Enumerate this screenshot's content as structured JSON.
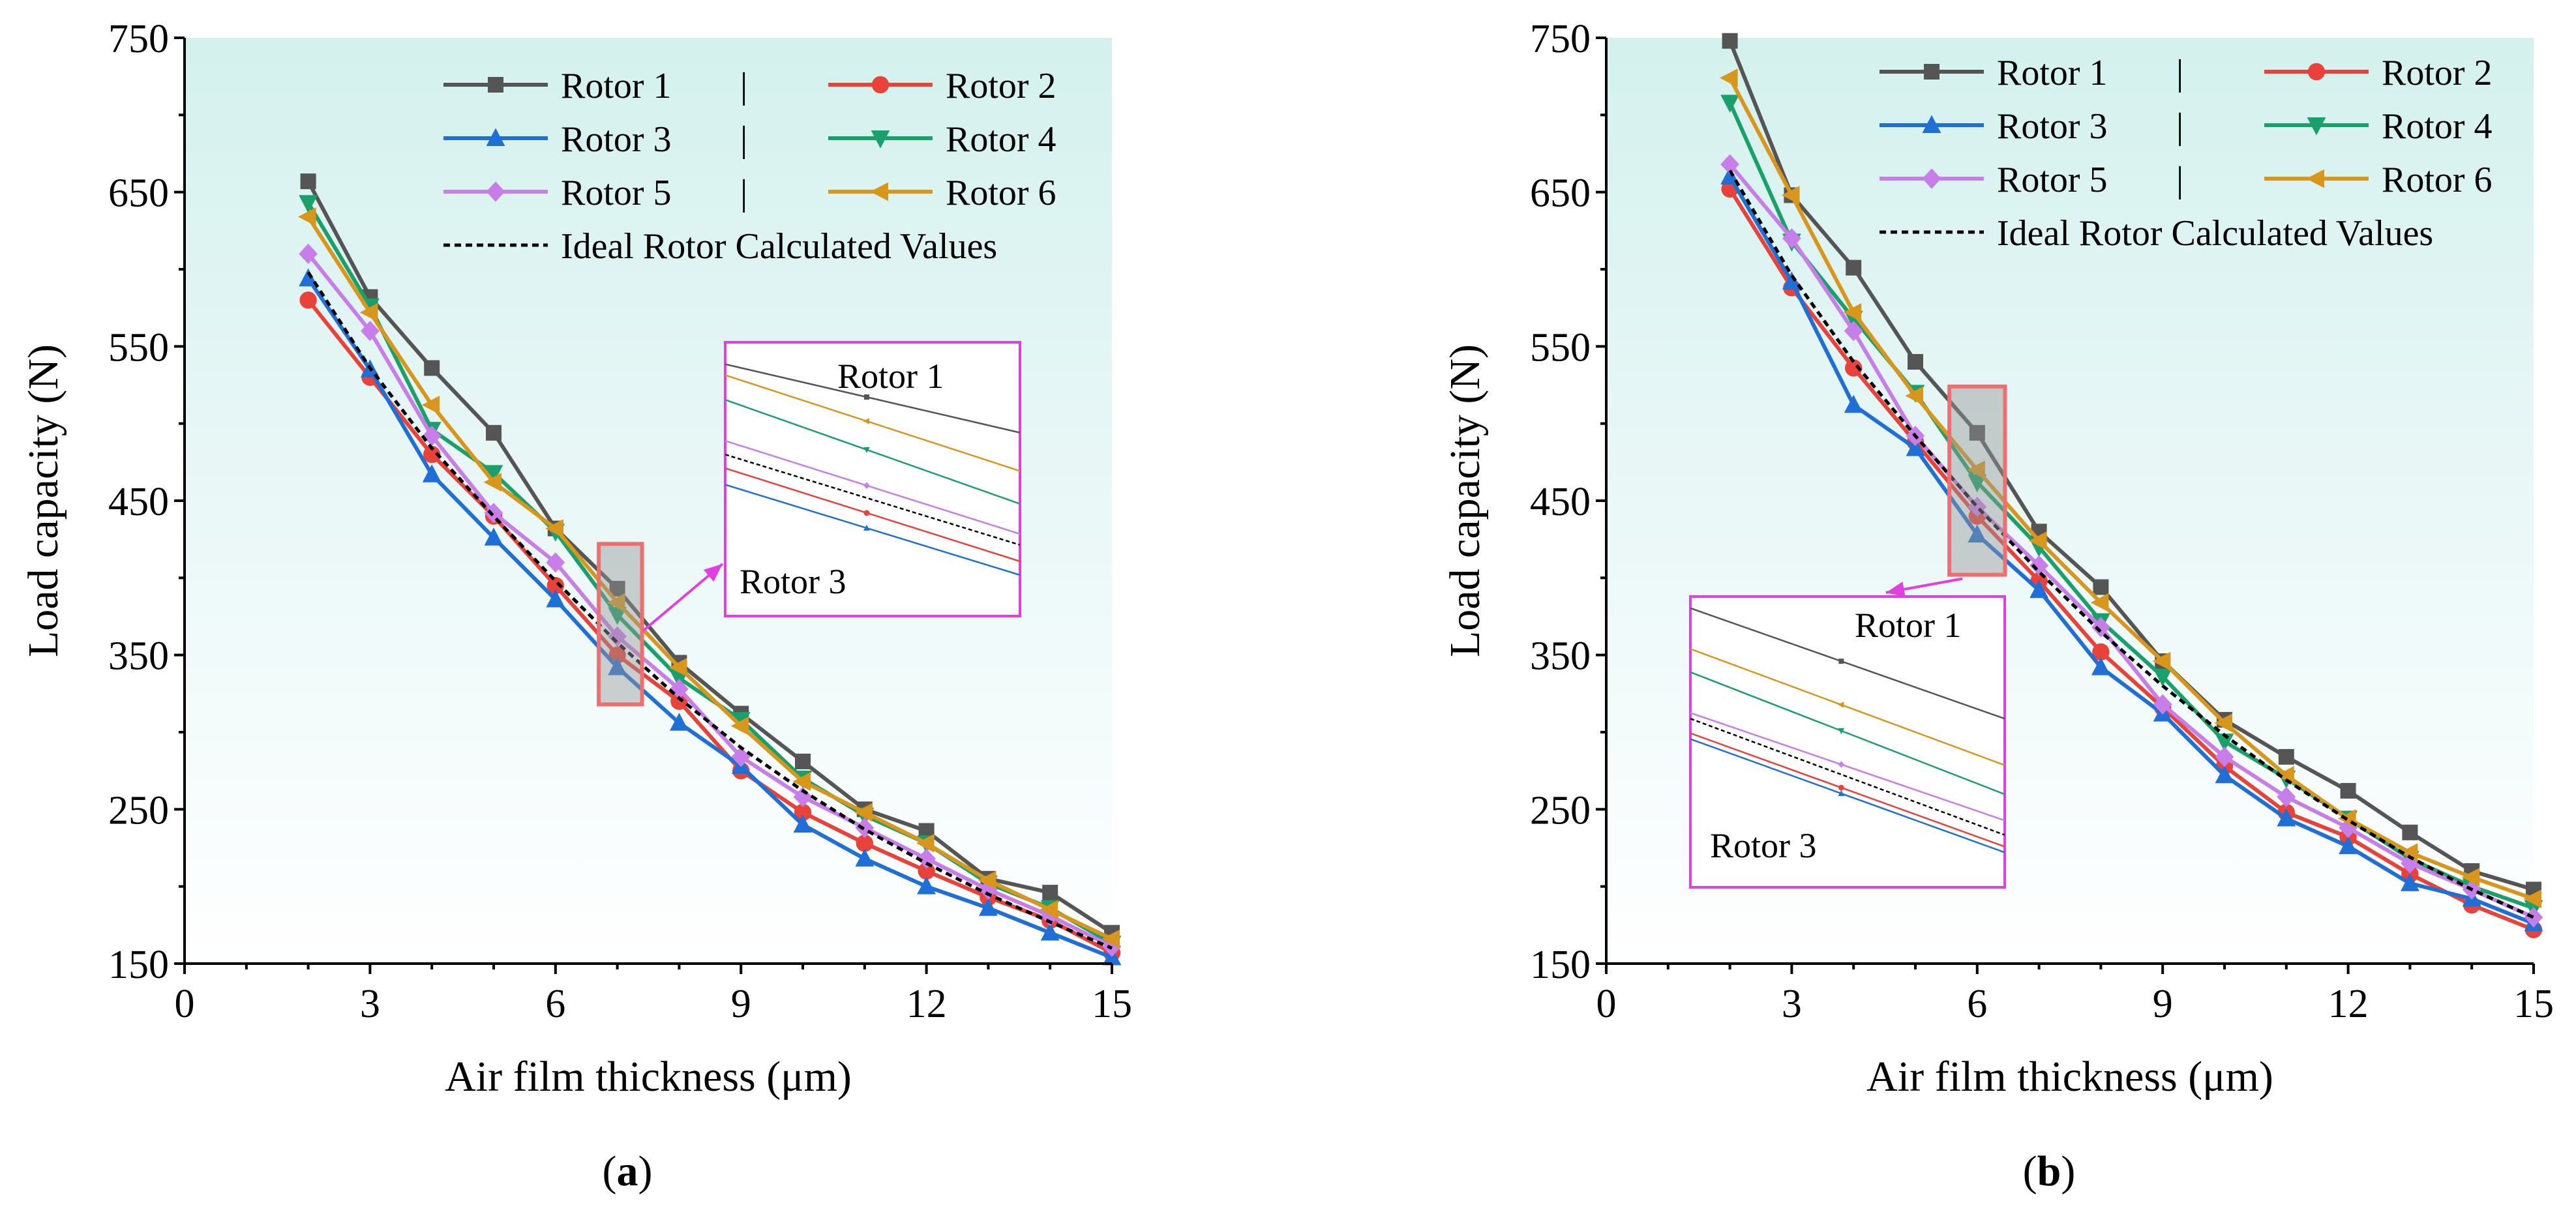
{
  "chart_data": [
    {
      "type": "line",
      "panel_label": "a",
      "xlabel": "Air film thickness (μm)",
      "ylabel": "Load capacity (N)",
      "xlim": [
        0,
        15
      ],
      "ylim": [
        150,
        750
      ],
      "xticks": [
        0,
        3,
        6,
        9,
        12,
        15
      ],
      "yticks": [
        150,
        250,
        350,
        450,
        550,
        650,
        750
      ],
      "x": [
        2,
        3,
        4,
        5,
        6,
        7,
        8,
        9,
        10,
        11,
        12,
        13,
        14,
        15
      ],
      "series": [
        {
          "name": "Rotor 1",
          "color": "#555555",
          "marker": "square",
          "values": [
            657,
            582,
            536,
            494,
            432,
            393,
            345,
            312,
            281,
            250,
            236,
            205,
            196,
            170
          ]
        },
        {
          "name": "Rotor 2",
          "color": "#e8423a",
          "marker": "circle",
          "values": [
            580,
            530,
            480,
            440,
            395,
            350,
            320,
            275,
            248,
            228,
            210,
            193,
            178,
            157
          ]
        },
        {
          "name": "Rotor 3",
          "color": "#1f6fd6",
          "marker": "triangle-up",
          "values": [
            594,
            535,
            467,
            426,
            386,
            342,
            306,
            278,
            240,
            218,
            200,
            186,
            170,
            154
          ]
        },
        {
          "name": "Rotor 4",
          "color": "#1aa06b",
          "marker": "triangle-down",
          "values": [
            643,
            576,
            496,
            468,
            430,
            376,
            335,
            308,
            270,
            246,
            228,
            202,
            186,
            163
          ]
        },
        {
          "name": "Rotor 5",
          "color": "#c77ee8",
          "marker": "diamond",
          "values": [
            610,
            560,
            492,
            442,
            410,
            362,
            328,
            284,
            258,
            238,
            218,
            198,
            181,
            161
          ]
        },
        {
          "name": "Rotor 6",
          "color": "#d8961c",
          "marker": "triangle-left",
          "values": [
            634,
            572,
            512,
            462,
            432,
            384,
            342,
            304,
            268,
            248,
            228,
            204,
            185,
            166
          ]
        },
        {
          "name": "Ideal Rotor Calculated Values",
          "color": "#000000",
          "marker": "none",
          "dashed": true,
          "values": [
            598,
            536,
            484,
            440,
            398,
            358,
            322,
            290,
            262,
            237,
            215,
            195,
            177,
            160
          ]
        }
      ],
      "legend_position": "top-right",
      "inset_annotations": [
        "Rotor 1",
        "Rotor 3"
      ]
    },
    {
      "type": "line",
      "panel_label": "b",
      "xlabel": "Air film thickness (μm)",
      "ylabel": "Load capacity (N)",
      "xlim": [
        0,
        15
      ],
      "ylim": [
        150,
        750
      ],
      "xticks": [
        0,
        3,
        6,
        9,
        12,
        15
      ],
      "yticks": [
        150,
        250,
        350,
        450,
        550,
        650,
        750
      ],
      "x": [
        2,
        3,
        4,
        5,
        6,
        7,
        8,
        9,
        10,
        11,
        12,
        13,
        14,
        15
      ],
      "series": [
        {
          "name": "Rotor 1",
          "color": "#555555",
          "marker": "square",
          "values": [
            748,
            648,
            601,
            540,
            494,
            430,
            394,
            346,
            308,
            284,
            262,
            235,
            210,
            198
          ]
        },
        {
          "name": "Rotor 2",
          "color": "#e8423a",
          "marker": "circle",
          "values": [
            652,
            588,
            536,
            488,
            440,
            398,
            352,
            316,
            278,
            248,
            232,
            208,
            188,
            172
          ]
        },
        {
          "name": "Rotor 3",
          "color": "#1f6fd6",
          "marker": "triangle-up",
          "values": [
            660,
            592,
            512,
            484,
            428,
            392,
            342,
            312,
            272,
            244,
            226,
            202,
            192,
            176
          ]
        },
        {
          "name": "Rotor 4",
          "color": "#1aa06b",
          "marker": "triangle-down",
          "values": [
            708,
            618,
            568,
            520,
            462,
            420,
            372,
            336,
            294,
            270,
            244,
            218,
            200,
            186
          ]
        },
        {
          "name": "Rotor 5",
          "color": "#c77ee8",
          "marker": "diamond",
          "values": [
            668,
            620,
            560,
            492,
            446,
            408,
            368,
            318,
            284,
            258,
            238,
            215,
            198,
            180
          ]
        },
        {
          "name": "Rotor 6",
          "color": "#d8961c",
          "marker": "triangle-left",
          "values": [
            724,
            648,
            572,
            518,
            470,
            424,
            384,
            346,
            306,
            272,
            244,
            222,
            206,
            192
          ]
        },
        {
          "name": "Ideal Rotor Calculated Values",
          "color": "#000000",
          "marker": "none",
          "dashed": true,
          "values": [
            664,
            596,
            540,
            492,
            446,
            404,
            365,
            330,
            298,
            269,
            243,
            219,
            198,
            180
          ]
        }
      ],
      "legend_position": "top-right",
      "inset_annotations": [
        "Rotor 1",
        "Rotor 3"
      ]
    }
  ]
}
